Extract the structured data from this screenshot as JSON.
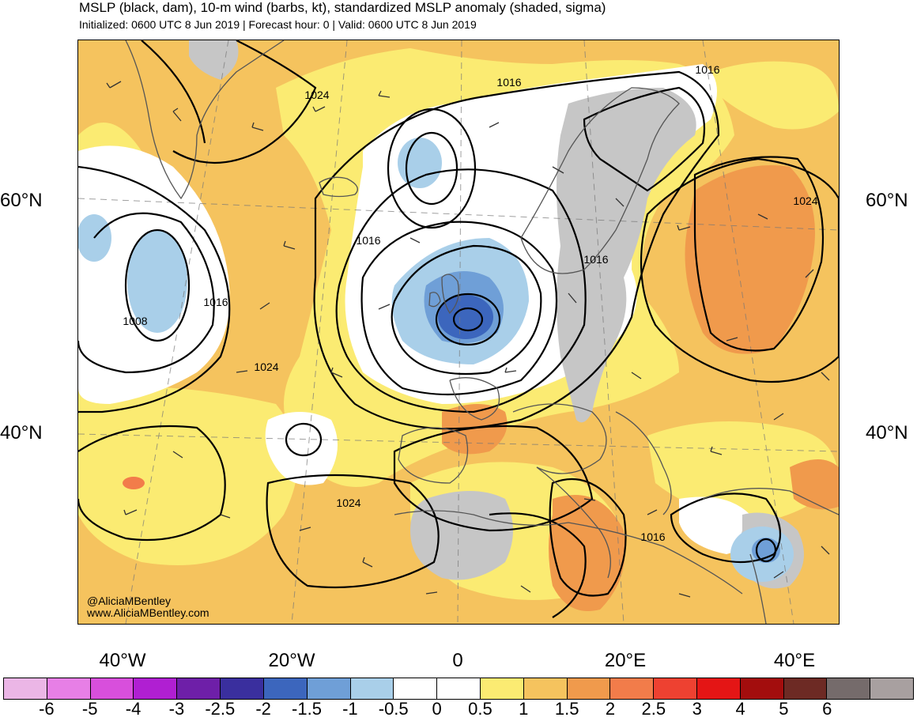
{
  "header": {
    "title": "MSLP (black, dam), 10-m wind (barbs, kt), standardized MSLP anomaly (shaded, sigma)",
    "subtitle": "Initialized: 0600 UTC 8 Jun 2019 | Forecast hour: 0 | Valid: 0600 UTC 8 Jun 2019"
  },
  "map": {
    "lat_labels": {
      "n60": "60°N",
      "n40": "40°N"
    },
    "lon_labels": [
      "40°W",
      "20°W",
      "0",
      "20°E",
      "40°E"
    ],
    "isobar_labels": [
      "1016",
      "1016",
      "1024",
      "1016",
      "1016",
      "1008",
      "1024",
      "1024",
      "1016",
      "1024",
      "1016"
    ],
    "credit_handle": "@AliciaMBentley",
    "credit_url": "www.AliciaMBentley.com",
    "colors": {
      "ocean_positive": "#f5c35e",
      "anomaly_0_5": "#fbeb72",
      "anomaly_1_5": "#f09a4c",
      "anomaly_2": "#f27c4a",
      "anomaly_neg_0_5": "#a9cfe9",
      "anomaly_neg_1": "#6f9fd7",
      "anomaly_neg_1_5": "#3c66bd",
      "near_zero": "#ffffff",
      "land_gray": "#c6c6c6"
    }
  },
  "colorbar": {
    "colors": [
      "#ebb6e6",
      "#e77fe6",
      "#d84fdc",
      "#b01fd2",
      "#6e1fa8",
      "#3a2f9e",
      "#3c66bd",
      "#6f9fd7",
      "#a9cfe9",
      "#ffffff",
      "#ffffff",
      "#fbeb72",
      "#f5c35e",
      "#f09a4c",
      "#f27c4a",
      "#ee4131",
      "#e41515",
      "#a30d0d",
      "#6d2a24",
      "#756b6b",
      "#a8a0a0"
    ],
    "tick_labels": [
      "-6",
      "-5",
      "-4",
      "-3",
      "-2.5",
      "-2",
      "-1.5",
      "-1",
      "-0.5",
      "0",
      "0.5",
      "1",
      "1.5",
      "2",
      "2.5",
      "3",
      "4",
      "5",
      "6"
    ]
  }
}
